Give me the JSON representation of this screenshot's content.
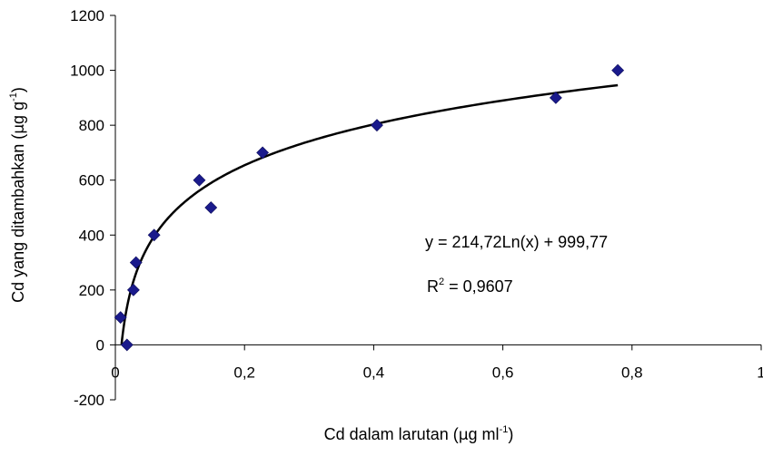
{
  "chart_data": {
    "type": "scatter",
    "title": "",
    "xlabel": {
      "main": "Cd dalam larutan (",
      "mu": "µ",
      "unit": "g ml",
      "sup": "-1",
      "close": ")"
    },
    "ylabel": {
      "main": "Cd yang ditambahkan (",
      "mu": "µ",
      "unit": "g g",
      "sup": "-1",
      "close": ")"
    },
    "xlim": [
      0,
      1
    ],
    "ylim": [
      -200,
      1200
    ],
    "xticks": [
      0,
      0.2,
      0.4,
      0.6,
      0.8,
      1
    ],
    "yticks": [
      -200,
      0,
      200,
      400,
      600,
      800,
      1000,
      1200
    ],
    "xtick_labels": [
      "0",
      "0,2",
      "0,4",
      "0,6",
      "0,8",
      "1"
    ],
    "ytick_labels": [
      "-200",
      "0",
      "200",
      "400",
      "600",
      "800",
      "1000",
      "1200"
    ],
    "grid": false,
    "marker": "diamond",
    "marker_color": "#1a1a8c",
    "line_color": "#000000",
    "points": [
      {
        "x": 0.008,
        "y": 100
      },
      {
        "x": 0.018,
        "y": 0
      },
      {
        "x": 0.028,
        "y": 200
      },
      {
        "x": 0.032,
        "y": 300
      },
      {
        "x": 0.06,
        "y": 400
      },
      {
        "x": 0.13,
        "y": 600
      },
      {
        "x": 0.148,
        "y": 500
      },
      {
        "x": 0.228,
        "y": 700
      },
      {
        "x": 0.405,
        "y": 800
      },
      {
        "x": 0.682,
        "y": 900
      },
      {
        "x": 0.778,
        "y": 1000
      }
    ],
    "trendline": {
      "type": "logarithmic",
      "a": 214.72,
      "b": 999.77,
      "x_range": [
        0.0096,
        0.778
      ],
      "equation_label": "y = 214,72Ln(x) + 999,77",
      "r2_prefix": "R",
      "r2_sup": "2",
      "r2_value": " = 0,9607"
    }
  }
}
